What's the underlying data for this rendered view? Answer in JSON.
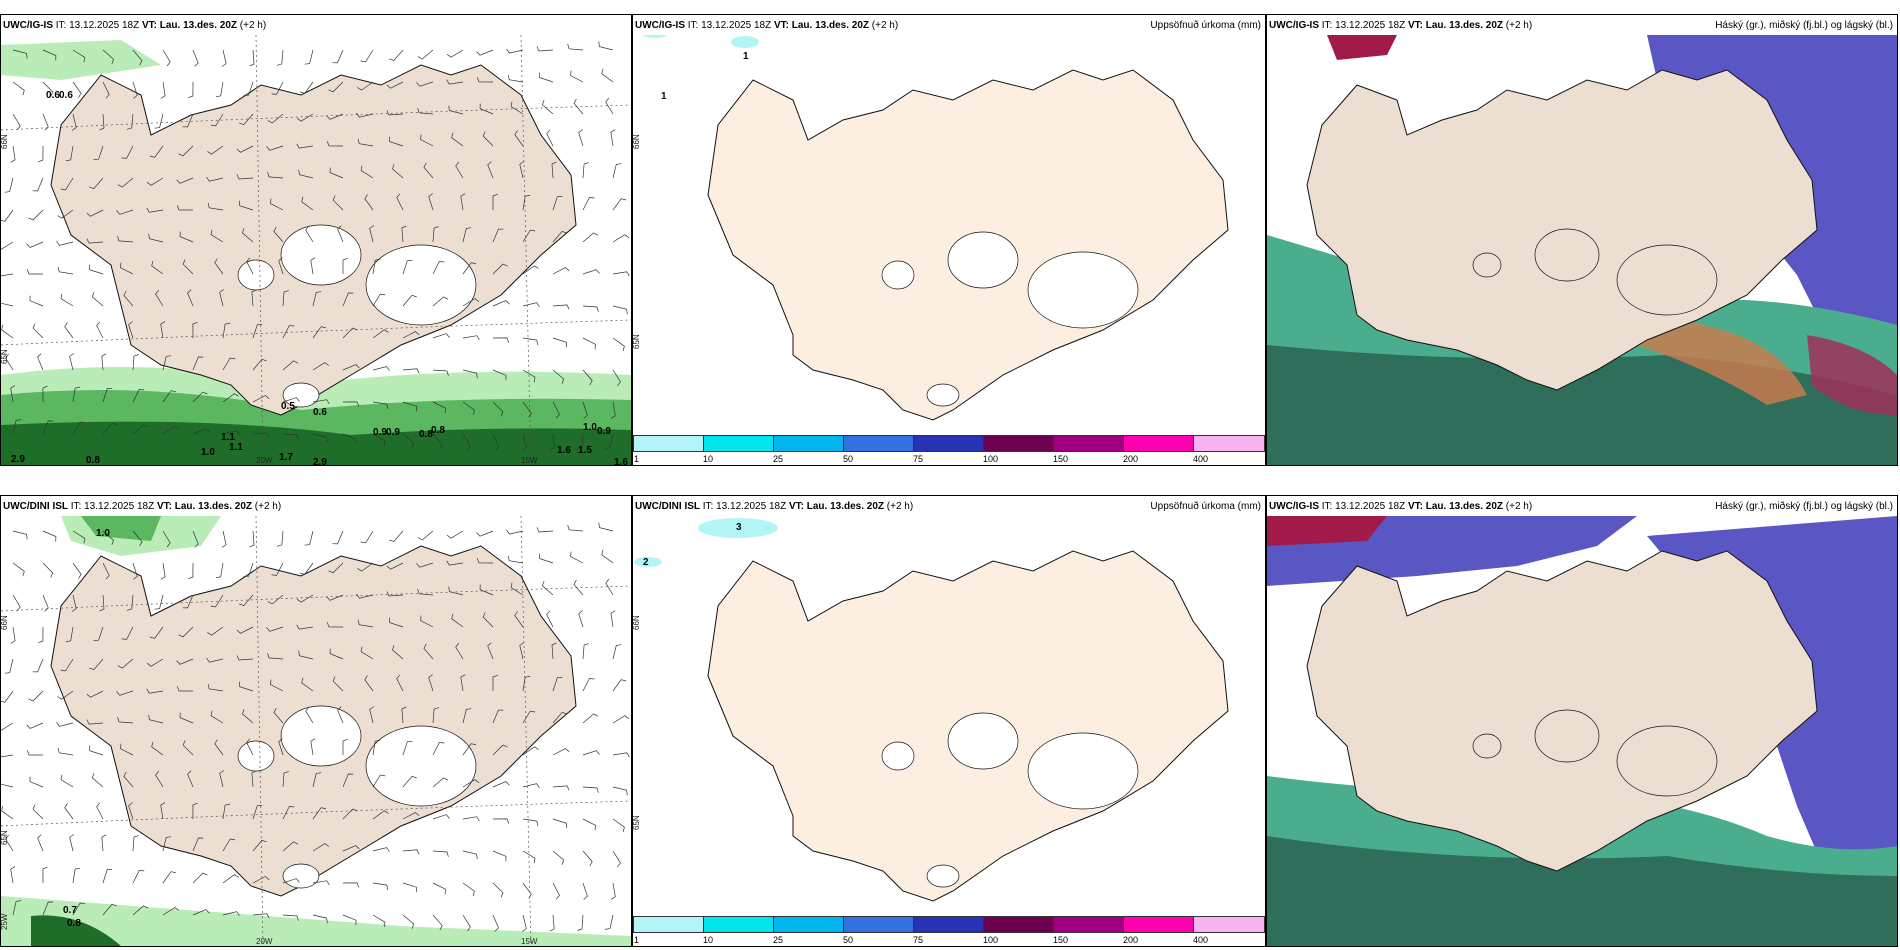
{
  "rows": [
    {
      "model": "UWC/IG-IS",
      "it": "IT: 13.12.2025 18Z",
      "vt_label": "VT:",
      "vt": "Lau. 13.des. 20Z",
      "lead": "(+2 h)"
    },
    {
      "model": "UWC/DINI ISL",
      "it": "IT: 13.12.2025 18Z",
      "vt_label": "VT:",
      "vt": "Lau. 13.des. 20Z",
      "lead": "(+2 h)"
    }
  ],
  "panel3_model": "UWC/IG-IS",
  "precip_title": "Uppsöfnuð úrkoma (mm)",
  "cloud_title": "Háský (gr.), miðský (fj.bl.) og lágský (bl.)",
  "colorbar": {
    "ticks": [
      "1",
      "10",
      "25",
      "50",
      "75",
      "100",
      "150",
      "200",
      "400"
    ],
    "colors": [
      "#b3f5f7",
      "#00e5ee",
      "#00b4ee",
      "#3370e0",
      "#2634b4",
      "#6e0050",
      "#a00080",
      "#ff00b0",
      "#f7b4f0"
    ]
  },
  "lat_labels": [
    "66N",
    "65N"
  ],
  "lon_labels": [
    "20W",
    "15W"
  ],
  "lat_labels_bottom": [
    "66N",
    "65N",
    "25W"
  ],
  "wind_panel_top_values": [
    "0.6",
    "0.6",
    "0.5",
    "0.6",
    "1.1",
    "1.1",
    "1.0",
    "0.9",
    "0.9",
    "0.8",
    "0.8",
    "1.0",
    "0.9",
    "2.9",
    "0.8",
    "1.7",
    "2.9",
    "1.6",
    "1.5",
    "1.6"
  ],
  "wind_panel_bottom_values": [
    "1.0",
    "0.7",
    "0.8"
  ],
  "precip_top_values": [
    "1",
    "1"
  ],
  "precip_bottom_values": [
    "3",
    "2"
  ]
}
